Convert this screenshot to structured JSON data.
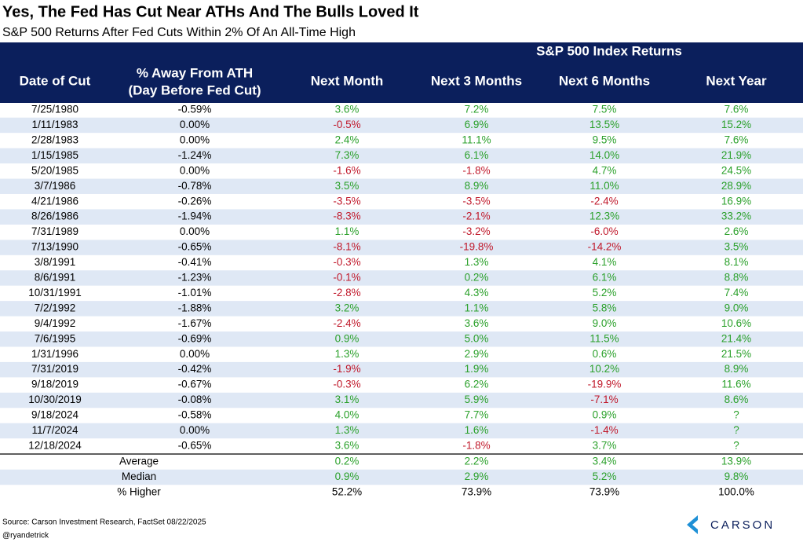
{
  "header": {
    "title": "Yes, The Fed Has Cut Near ATHs And The Bulls Loved It",
    "subtitle": "S&P 500 Returns After Fed Cuts Within 2% Of An All-Time High"
  },
  "table": {
    "group_header": "S&P 500 Index Returns",
    "columns": [
      [
        "Date of Cut"
      ],
      [
        "% Away From ATH",
        "(Day Before Fed Cut)"
      ],
      [
        "Next Month"
      ],
      [
        "Next 3 Months"
      ],
      [
        "Next 6 Months"
      ],
      [
        "Next Year"
      ]
    ],
    "header_color": "#0b1f5c",
    "stripe_color": "#dfe8f5",
    "positive_color": "#2aa02a",
    "negative_color": "#c0182a",
    "rows": [
      [
        "7/25/1980",
        "-0.59%",
        "3.6%",
        "7.2%",
        "7.5%",
        "7.6%"
      ],
      [
        "1/11/1983",
        "0.00%",
        "-0.5%",
        "6.9%",
        "13.5%",
        "15.2%"
      ],
      [
        "2/28/1983",
        "0.00%",
        "2.4%",
        "11.1%",
        "9.5%",
        "7.6%"
      ],
      [
        "1/15/1985",
        "-1.24%",
        "7.3%",
        "6.1%",
        "14.0%",
        "21.9%"
      ],
      [
        "5/20/1985",
        "0.00%",
        "-1.6%",
        "-1.8%",
        "4.7%",
        "24.5%"
      ],
      [
        "3/7/1986",
        "-0.78%",
        "3.5%",
        "8.9%",
        "11.0%",
        "28.9%"
      ],
      [
        "4/21/1986",
        "-0.26%",
        "-3.5%",
        "-3.5%",
        "-2.4%",
        "16.9%"
      ],
      [
        "8/26/1986",
        "-1.94%",
        "-8.3%",
        "-2.1%",
        "12.3%",
        "33.2%"
      ],
      [
        "7/31/1989",
        "0.00%",
        "1.1%",
        "-3.2%",
        "-6.0%",
        "2.6%"
      ],
      [
        "7/13/1990",
        "-0.65%",
        "-8.1%",
        "-19.8%",
        "-14.2%",
        "3.5%"
      ],
      [
        "3/8/1991",
        "-0.41%",
        "-0.3%",
        "1.3%",
        "4.1%",
        "8.1%"
      ],
      [
        "8/6/1991",
        "-1.23%",
        "-0.1%",
        "0.2%",
        "6.1%",
        "8.8%"
      ],
      [
        "10/31/1991",
        "-1.01%",
        "-2.8%",
        "4.3%",
        "5.2%",
        "7.4%"
      ],
      [
        "7/2/1992",
        "-1.88%",
        "3.2%",
        "1.1%",
        "5.8%",
        "9.0%"
      ],
      [
        "9/4/1992",
        "-1.67%",
        "-2.4%",
        "3.6%",
        "9.0%",
        "10.6%"
      ],
      [
        "7/6/1995",
        "-0.69%",
        "0.9%",
        "5.0%",
        "11.5%",
        "21.4%"
      ],
      [
        "1/31/1996",
        "0.00%",
        "1.3%",
        "2.9%",
        "0.6%",
        "21.5%"
      ],
      [
        "7/31/2019",
        "-0.42%",
        "-1.9%",
        "1.9%",
        "10.2%",
        "8.9%"
      ],
      [
        "9/18/2019",
        "-0.67%",
        "-0.3%",
        "6.2%",
        "-19.9%",
        "11.6%"
      ],
      [
        "10/30/2019",
        "-0.08%",
        "3.1%",
        "5.9%",
        "-7.1%",
        "8.6%"
      ],
      [
        "9/18/2024",
        "-0.58%",
        "4.0%",
        "7.7%",
        "0.9%",
        "?"
      ],
      [
        "11/7/2024",
        "0.00%",
        "1.3%",
        "1.6%",
        "-1.4%",
        "?"
      ],
      [
        "12/18/2024",
        "-0.65%",
        "3.6%",
        "-1.8%",
        "3.7%",
        "?"
      ]
    ],
    "summary": [
      {
        "label": "Average",
        "values": [
          "0.2%",
          "2.2%",
          "3.4%",
          "13.9%"
        ],
        "colored": true
      },
      {
        "label": "Median",
        "values": [
          "0.9%",
          "2.9%",
          "5.2%",
          "9.8%"
        ],
        "colored": true
      },
      {
        "label": "% Higher",
        "values": [
          "52.2%",
          "73.9%",
          "73.9%",
          "100.0%"
        ],
        "colored": false
      }
    ]
  },
  "footer": {
    "source": "Source: Carson Investment Research, FactSet 08/22/2025",
    "handle": "@ryandetrick"
  },
  "logo": {
    "text": "CARSON"
  }
}
